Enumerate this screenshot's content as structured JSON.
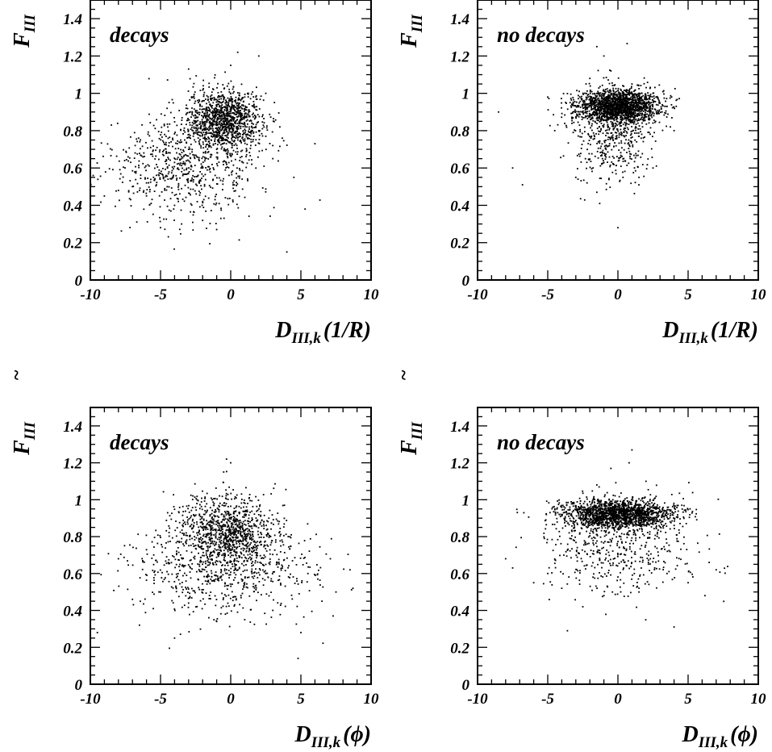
{
  "chart_data": [
    {
      "type": "scatter",
      "panel_label": "decays",
      "xlabel_main": "D",
      "xlabel_sub": "III,k",
      "xlabel_arg": "(1/R)",
      "ylabel_main": "F",
      "ylabel_sub": "III",
      "ylabel_accent": "~",
      "xlim": [
        -10,
        10
      ],
      "ylim": [
        0,
        1.5
      ],
      "xticks": [
        "-10",
        "-5",
        "0",
        "5",
        "10"
      ],
      "yticks": [
        "0",
        "0.2",
        "0.4",
        "0.6",
        "0.8",
        "1",
        "1.2",
        "1.4"
      ],
      "x_tick_values": [
        -10,
        -5,
        0,
        5,
        10
      ],
      "y_tick_values": [
        0,
        0.2,
        0.4,
        0.6,
        0.8,
        1.0,
        1.2,
        1.4
      ],
      "points": [
        [
          0.0,
          0.88
        ],
        [
          -0.5,
          0.9
        ],
        [
          0.5,
          0.92
        ],
        [
          -1.0,
          0.85
        ],
        [
          1.0,
          0.87
        ],
        [
          -1.5,
          0.82
        ],
        [
          1.5,
          0.84
        ],
        [
          -2.0,
          0.78
        ],
        [
          2.0,
          0.8
        ],
        [
          -2.5,
          0.74
        ],
        [
          2.5,
          0.77
        ],
        [
          -3.0,
          0.7
        ],
        [
          3.0,
          0.72
        ],
        [
          -3.5,
          0.66
        ],
        [
          -4.0,
          0.63
        ],
        [
          -4.5,
          0.6
        ],
        [
          -5.0,
          0.57
        ],
        [
          -5.5,
          0.55
        ],
        [
          -6.0,
          0.52
        ],
        [
          -7.0,
          0.5
        ],
        [
          -8.0,
          0.48
        ],
        [
          -9.0,
          0.45
        ],
        [
          -9.8,
          0.56
        ],
        [
          0.0,
          1.15
        ],
        [
          0.5,
          1.22
        ],
        [
          2.0,
          1.2
        ],
        [
          3.5,
          0.82
        ],
        [
          4.5,
          0.55
        ],
        [
          6.0,
          0.73
        ],
        [
          5.3,
          0.38
        ],
        [
          4.0,
          0.15
        ],
        [
          -3.5,
          0.3
        ],
        [
          -5.0,
          0.28
        ],
        [
          -1.0,
          0.27
        ],
        [
          -0.7,
          0.33
        ],
        [
          -8.5,
          0.83
        ],
        [
          -6.5,
          0.48
        ],
        [
          -2.0,
          0.6
        ],
        [
          -1.0,
          0.7
        ],
        [
          0.0,
          1.0
        ],
        [
          1.0,
          0.98
        ],
        [
          -2.5,
          0.9
        ],
        [
          -3.0,
          1.13
        ],
        [
          -4.0,
          0.4
        ],
        [
          -2.0,
          0.42
        ],
        [
          1.5,
          0.62
        ],
        [
          3.0,
          0.65
        ],
        [
          2.5,
          1.0
        ],
        [
          -0.3,
          0.95
        ],
        [
          0.3,
          0.96
        ]
      ],
      "cloud": {
        "cx": -0.4,
        "cy": 0.86,
        "sx": 1.3,
        "sy": 0.08,
        "n": 1100,
        "tail": {
          "cx": -3.0,
          "cy": 0.62,
          "sx": 2.6,
          "sy": 0.14,
          "n": 700
        }
      }
    },
    {
      "type": "scatter",
      "panel_label": "no decays",
      "xlabel_main": "D",
      "xlabel_sub": "III,k",
      "xlabel_arg": "(1/R)",
      "ylabel_main": "F",
      "ylabel_sub": "III",
      "ylabel_accent": "~",
      "xlim": [
        -10,
        10
      ],
      "ylim": [
        0,
        1.5
      ],
      "xticks": [
        "-10",
        "-5",
        "0",
        "5",
        "10"
      ],
      "yticks": [
        "0",
        "0.2",
        "0.4",
        "0.6",
        "0.8",
        "1",
        "1.2",
        "1.4"
      ],
      "x_tick_values": [
        -10,
        -5,
        0,
        5,
        10
      ],
      "y_tick_values": [
        0,
        0.2,
        0.4,
        0.6,
        0.8,
        1.0,
        1.2,
        1.4
      ],
      "points": [
        [
          -8.5,
          0.9
        ],
        [
          -7.5,
          0.6
        ],
        [
          -6.8,
          0.51
        ],
        [
          -5.0,
          0.98
        ],
        [
          -1.5,
          1.25
        ],
        [
          -1.0,
          1.2
        ],
        [
          -0.5,
          1.12
        ],
        [
          0.0,
          0.28
        ],
        [
          -1.5,
          0.47
        ],
        [
          -1.3,
          0.41
        ],
        [
          1.5,
          0.55
        ],
        [
          3.5,
          0.93
        ],
        [
          4.0,
          0.8
        ],
        [
          -3.0,
          0.55
        ],
        [
          -4.5,
          0.8
        ],
        [
          -2.0,
          1.08
        ],
        [
          1.0,
          1.05
        ],
        [
          -3.2,
          0.9
        ],
        [
          2.5,
          0.6
        ],
        [
          -2.2,
          0.52
        ]
      ],
      "cloud": {
        "cx": 0.0,
        "cy": 0.93,
        "sx": 1.5,
        "sy": 0.045,
        "n": 1700,
        "tail": {
          "cx": -0.4,
          "cy": 0.78,
          "sx": 1.4,
          "sy": 0.12,
          "n": 450
        }
      }
    },
    {
      "type": "scatter",
      "panel_label": "decays",
      "xlabel_main": "D",
      "xlabel_sub": "III,k",
      "xlabel_arg": "(ϕ)",
      "ylabel_main": "F",
      "ylabel_sub": "III",
      "ylabel_accent": "~",
      "xlim": [
        -10,
        10
      ],
      "ylim": [
        0,
        1.5
      ],
      "xticks": [
        "-10",
        "-5",
        "0",
        "5",
        "10"
      ],
      "yticks": [
        "0",
        "0.2",
        "0.4",
        "0.6",
        "0.8",
        "1",
        "1.2",
        "1.4"
      ],
      "x_tick_values": [
        -10,
        -5,
        0,
        5,
        10
      ],
      "y_tick_values": [
        0,
        0.2,
        0.4,
        0.6,
        0.8,
        1.0,
        1.2,
        1.4
      ],
      "points": [
        [
          -9.5,
          0.28
        ],
        [
          -8.0,
          0.68
        ],
        [
          -7.0,
          0.46
        ],
        [
          -6.5,
          0.32
        ],
        [
          -4.0,
          0.25
        ],
        [
          -0.3,
          1.22
        ],
        [
          0.0,
          1.2
        ],
        [
          -0.5,
          1.15
        ],
        [
          4.8,
          0.14
        ],
        [
          7.3,
          0.37
        ],
        [
          8.5,
          0.62
        ],
        [
          7.5,
          0.5
        ],
        [
          6.5,
          0.45
        ],
        [
          5.0,
          0.28
        ],
        [
          -3.0,
          0.44
        ],
        [
          3.0,
          0.4
        ],
        [
          1.0,
          0.35
        ],
        [
          -1.0,
          0.34
        ],
        [
          -5.0,
          0.5
        ],
        [
          5.5,
          0.6
        ]
      ],
      "cloud": {
        "cx": -0.2,
        "cy": 0.83,
        "sx": 1.8,
        "sy": 0.1,
        "n": 900,
        "tail": {
          "cx": -0.5,
          "cy": 0.63,
          "sx": 3.2,
          "sy": 0.13,
          "n": 700
        }
      }
    },
    {
      "type": "scatter",
      "panel_label": "no decays",
      "xlabel_main": "D",
      "xlabel_sub": "III,k",
      "xlabel_arg": "(ϕ)",
      "ylabel_main": "F",
      "ylabel_sub": "III",
      "ylabel_accent": "~",
      "xlim": [
        -10,
        10
      ],
      "ylim": [
        0,
        1.5
      ],
      "xticks": [
        "-10",
        "-5",
        "0",
        "5",
        "10"
      ],
      "yticks": [
        "0",
        "0.2",
        "0.4",
        "0.6",
        "0.8",
        "1",
        "1.2",
        "1.4"
      ],
      "x_tick_values": [
        -10,
        -5,
        0,
        5,
        10
      ],
      "y_tick_values": [
        0,
        0.2,
        0.4,
        0.6,
        0.8,
        1.0,
        1.2,
        1.4
      ],
      "points": [
        [
          -8.0,
          0.68
        ],
        [
          -7.5,
          0.63
        ],
        [
          -6.0,
          0.55
        ],
        [
          -3.6,
          0.29
        ],
        [
          4.0,
          0.31
        ],
        [
          6.2,
          0.48
        ],
        [
          7.0,
          0.62
        ],
        [
          6.5,
          0.66
        ],
        [
          1.0,
          1.27
        ],
        [
          0.8,
          1.2
        ],
        [
          -0.5,
          1.17
        ],
        [
          -1.5,
          1.08
        ],
        [
          2.0,
          1.1
        ],
        [
          -2.5,
          0.42
        ],
        [
          -1.0,
          0.48
        ],
        [
          1.5,
          0.5
        ],
        [
          -5.0,
          0.6
        ],
        [
          5.0,
          0.55
        ],
        [
          3.5,
          0.6
        ],
        [
          -4.0,
          0.52
        ]
      ],
      "cloud": {
        "cx": 0.0,
        "cy": 0.92,
        "sx": 2.0,
        "sy": 0.04,
        "n": 1600,
        "tail": {
          "cx": 0.0,
          "cy": 0.75,
          "sx": 2.6,
          "sy": 0.13,
          "n": 500
        }
      }
    }
  ]
}
